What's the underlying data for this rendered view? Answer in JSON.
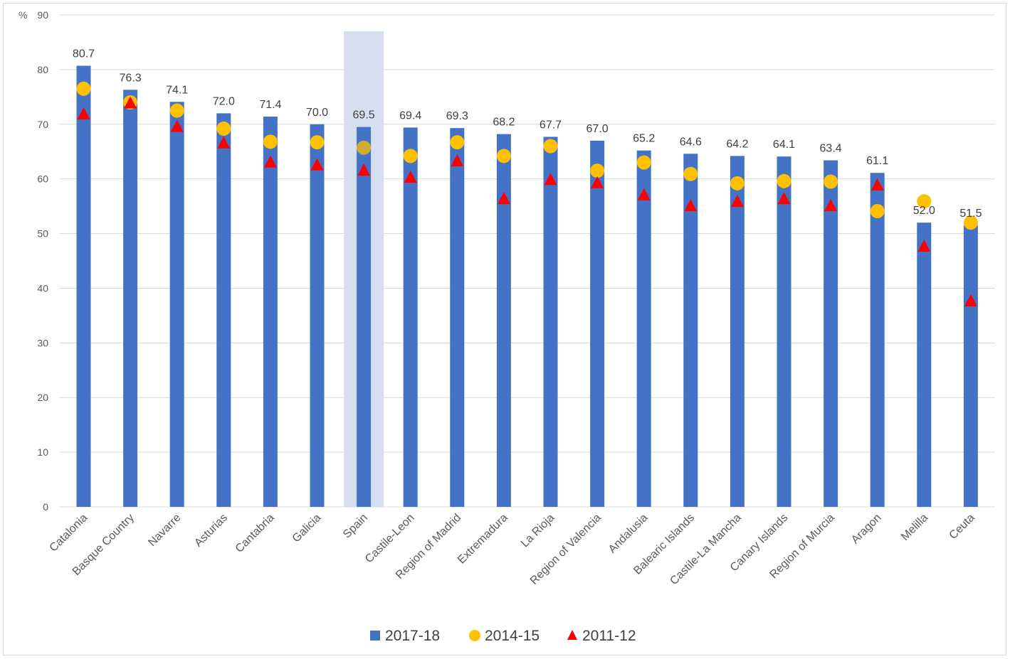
{
  "chart_data": {
    "type": "bar",
    "title": "",
    "xlabel": "",
    "ylabel": "%",
    "ylim": [
      0,
      90
    ],
    "yticks": [
      0,
      10,
      20,
      30,
      40,
      50,
      60,
      70,
      80,
      90
    ],
    "grid": true,
    "highlight_category": "Spain",
    "categories": [
      "Catalonia",
      "Basque Country",
      "Navarre",
      "Asturias",
      "Cantabria",
      "Galicia",
      "Spain",
      "Castile-Leon",
      "Region of Madrid",
      "Extremadura",
      "La Rioja",
      "Region of Valencia",
      "Andalusia",
      "Balearic Islands",
      "Castile-La Mancha",
      "Canary Islands",
      "Region of Murcia",
      "Aragon",
      "Melilla",
      "Ceuta"
    ],
    "series": [
      {
        "name": "2017-18",
        "marker": "bar",
        "color": "#4472C4",
        "values": [
          80.7,
          76.3,
          74.1,
          72.0,
          71.4,
          70.0,
          69.5,
          69.4,
          69.3,
          68.2,
          67.7,
          67.0,
          65.2,
          64.6,
          64.2,
          64.1,
          63.4,
          61.1,
          52.0,
          51.5
        ],
        "labels": [
          "80.7",
          "76.3",
          "74.1",
          "72.0",
          "71.4",
          "70.0",
          "69.5",
          "69.4",
          "69.3",
          "68.2",
          "67.7",
          "67.0",
          "65.2",
          "64.6",
          "64.2",
          "64.1",
          "63.4",
          "61.1",
          "52.0",
          "51.5"
        ]
      },
      {
        "name": "2014-15",
        "marker": "circle",
        "color": "#FFC000",
        "values": [
          76.5,
          74.0,
          72.5,
          69.2,
          66.8,
          66.7,
          65.7,
          64.2,
          66.7,
          64.2,
          66.0,
          61.5,
          63.0,
          60.9,
          59.2,
          59.6,
          59.5,
          54.1,
          55.9,
          52.0
        ]
      },
      {
        "name": "2011-12",
        "marker": "triangle",
        "color": "#FF0000",
        "values": [
          71.8,
          73.8,
          69.5,
          66.5,
          63.0,
          62.5,
          61.5,
          60.2,
          63.2,
          56.3,
          59.8,
          59.2,
          57.0,
          55.0,
          55.8,
          56.3,
          55.0,
          58.8,
          47.6,
          37.6
        ]
      }
    ],
    "legend_position": "bottom"
  }
}
